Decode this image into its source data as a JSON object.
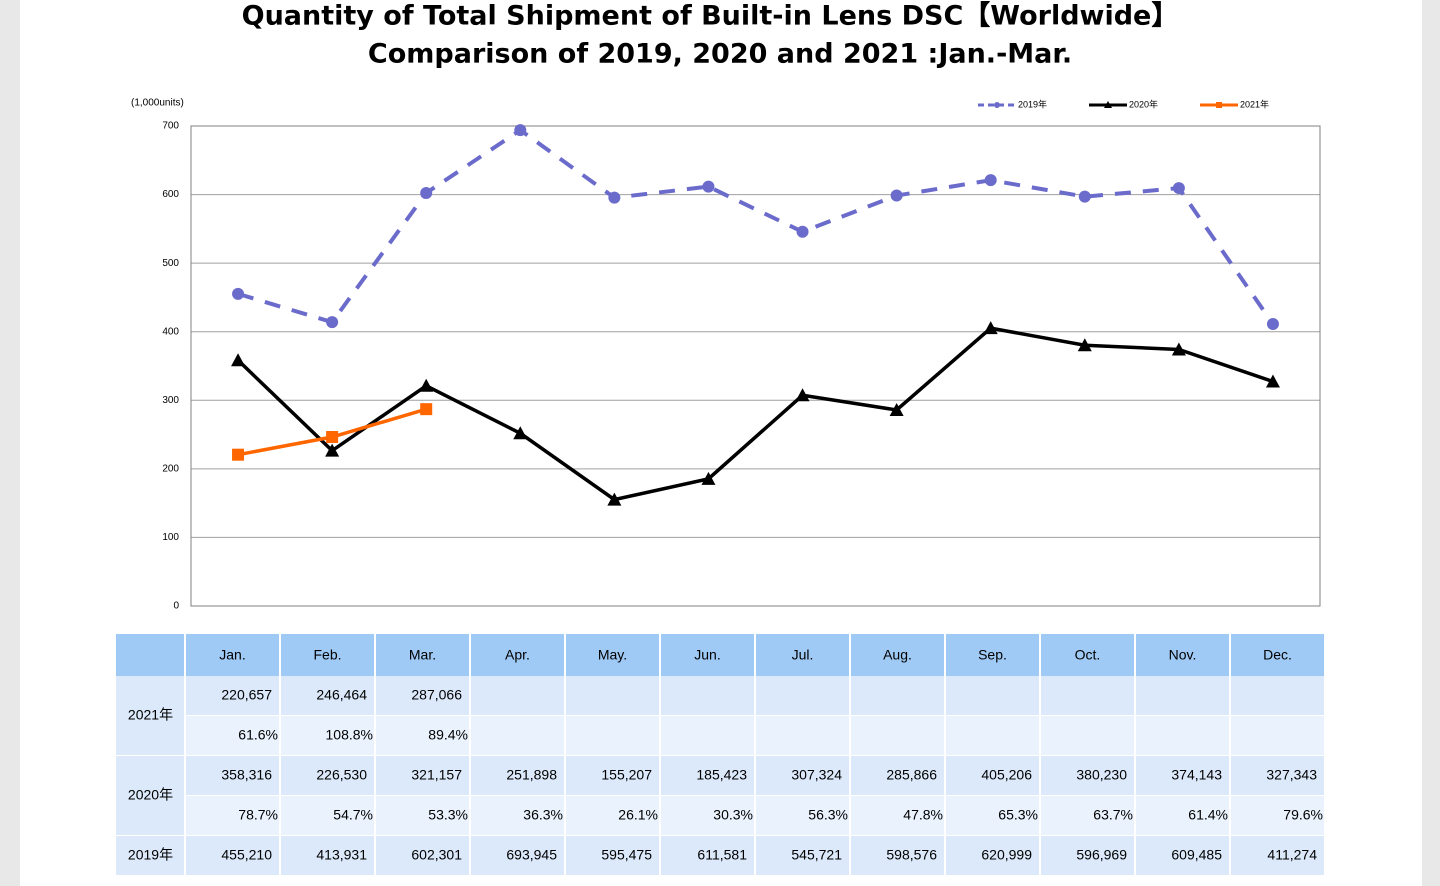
{
  "chart_data": {
    "type": "line",
    "title": "Quantity of Total Shipment of Built-in Lens DSC【Worldwide】",
    "subtitle": "Comparison of 2019, 2020 and 2021 :Jan.-Mar.",
    "y_label": "(1,000units)",
    "categories": [
      "Jan.",
      "Feb.",
      "Mar.",
      "Apr.",
      "May.",
      "Jun.",
      "Jul.",
      "Aug.",
      "Sep.",
      "Oct.",
      "Nov.",
      "Dec."
    ],
    "series": [
      {
        "name": "2019年",
        "color": "#6b6bcc",
        "dashed": true,
        "marker": "circle",
        "values": [
          455.21,
          413.931,
          602.301,
          693.945,
          595.475,
          611.581,
          545.721,
          598.576,
          620.999,
          596.969,
          609.485,
          411.274
        ]
      },
      {
        "name": "2020年",
        "color": "#000000",
        "dashed": false,
        "marker": "triangle",
        "values": [
          358.316,
          226.53,
          321.157,
          251.898,
          155.207,
          185.423,
          307.324,
          285.866,
          405.206,
          380.23,
          374.143,
          327.343
        ]
      },
      {
        "name": "2021年",
        "color": "#ff6600",
        "dashed": false,
        "marker": "square",
        "values": [
          220.657,
          246.464,
          287.066,
          null,
          null,
          null,
          null,
          null,
          null,
          null,
          null,
          null
        ]
      }
    ],
    "ylim": [
      0,
      700
    ],
    "yticks": [
      0,
      100,
      200,
      300,
      400,
      500,
      600,
      700
    ],
    "grid": true
  },
  "table": {
    "rows": [
      {
        "label": "2021年",
        "values": [
          "220,657",
          "246,464",
          "287,066",
          null,
          null,
          null,
          null,
          null,
          null,
          null,
          null,
          null
        ],
        "ratios": [
          "61.6%",
          "108.8%",
          "89.4%",
          null,
          null,
          null,
          null,
          null,
          null,
          null,
          null,
          null
        ]
      },
      {
        "label": "2020年",
        "values": [
          "358,316",
          "226,530",
          "321,157",
          "251,898",
          "155,207",
          "185,423",
          "307,324",
          "285,866",
          "405,206",
          "380,230",
          "374,143",
          "327,343"
        ],
        "ratios": [
          "78.7%",
          "54.7%",
          "53.3%",
          "36.3%",
          "26.1%",
          "30.3%",
          "56.3%",
          "47.8%",
          "65.3%",
          "63.7%",
          "61.4%",
          "79.6%"
        ]
      },
      {
        "label": "2019年",
        "values": [
          "455,210",
          "413,931",
          "602,301",
          "693,945",
          "595,475",
          "611,581",
          "545,721",
          "598,576",
          "620,999",
          "596,969",
          "609,485",
          "411,274"
        ]
      }
    ]
  }
}
